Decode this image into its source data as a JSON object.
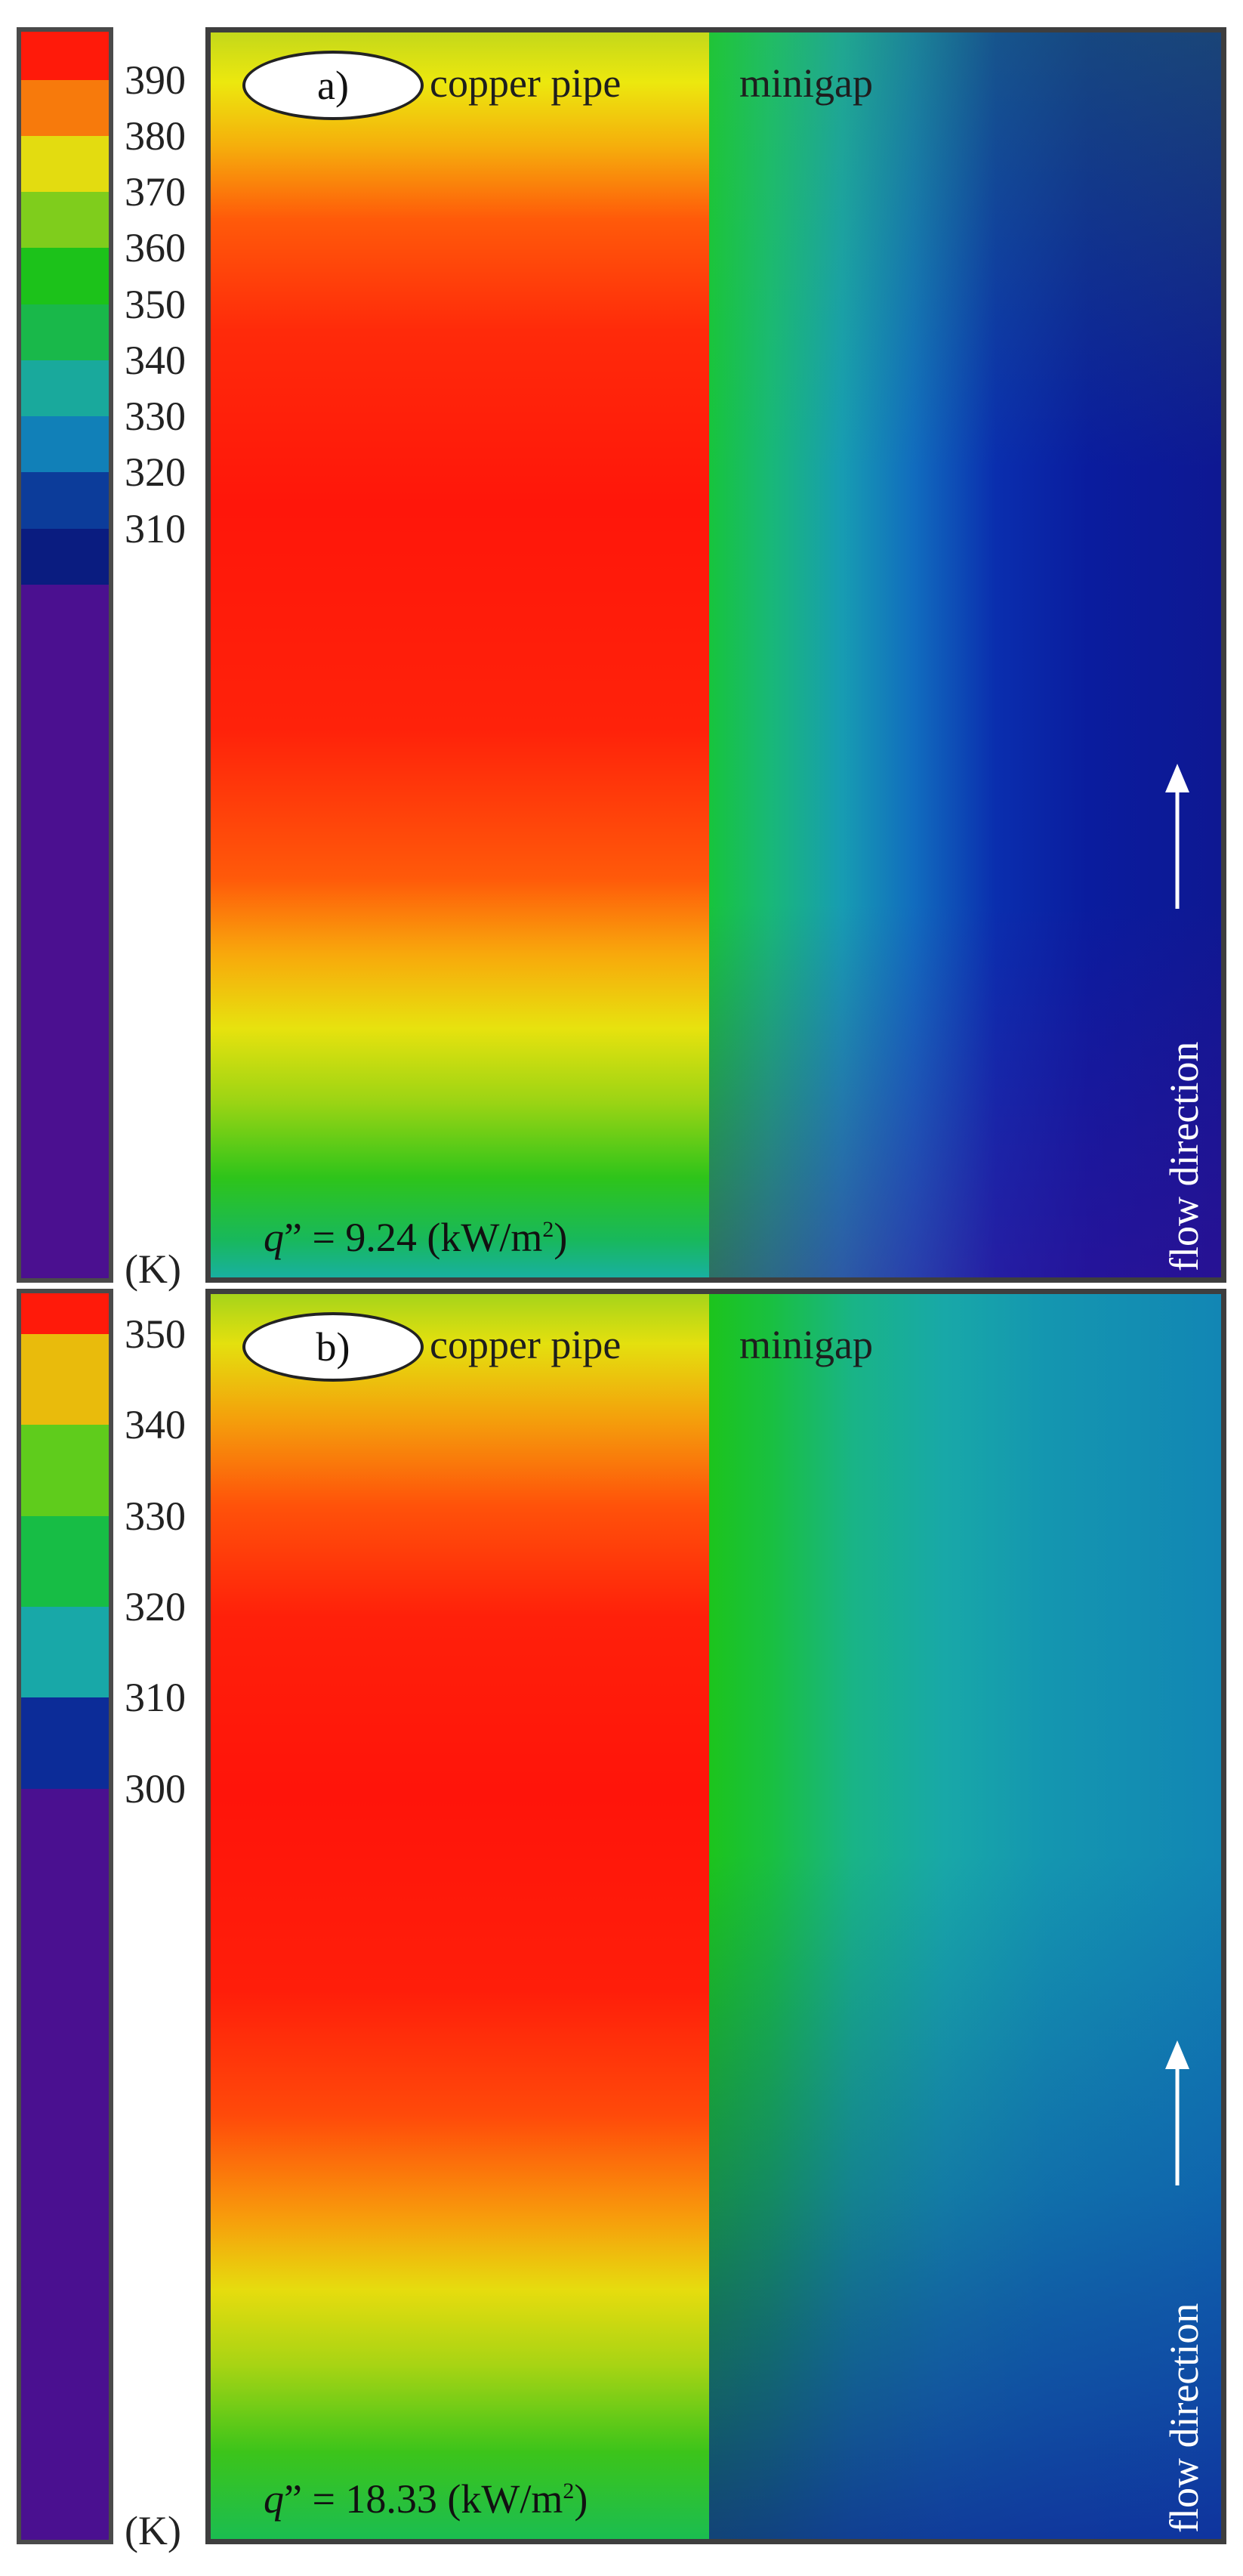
{
  "panels": [
    {
      "id": "a",
      "label": "a)",
      "pipe_label": "copper pipe",
      "gap_label": "minigap",
      "flux_symbol": "q",
      "flux_text": "” = 9.24 (kW/m",
      "flux_exp": "2",
      "flux_close": ")",
      "flow_label": "flow direction",
      "unit_label": "(K)",
      "ticks": [
        "390",
        "380",
        "370",
        "360",
        "350",
        "340",
        "330",
        "320",
        "310"
      ],
      "colorbar_colors": [
        "#ff1a0a",
        "#f77a0c",
        "#e3dc10",
        "#7fcd1c",
        "#1cc21a",
        "#19b84a",
        "#19a99c",
        "#1180b8",
        "#0c3c9a",
        "#0a1c80",
        "#4b1090"
      ]
    },
    {
      "id": "b",
      "label": "b)",
      "pipe_label": "copper pipe",
      "gap_label": "minigap",
      "flux_symbol": "q",
      "flux_text": "” = 18.33 (kW/m",
      "flux_exp": "2",
      "flux_close": ")",
      "flow_label": "flow direction",
      "unit_label": "(K)",
      "ticks": [
        "350",
        "340",
        "330",
        "320",
        "310",
        "300"
      ],
      "colorbar_colors": [
        "#ff1a0a",
        "#e9bb0c",
        "#5fcc1c",
        "#17bd45",
        "#18a8a8",
        "#0c2c98",
        "#4a1090"
      ]
    }
  ]
}
